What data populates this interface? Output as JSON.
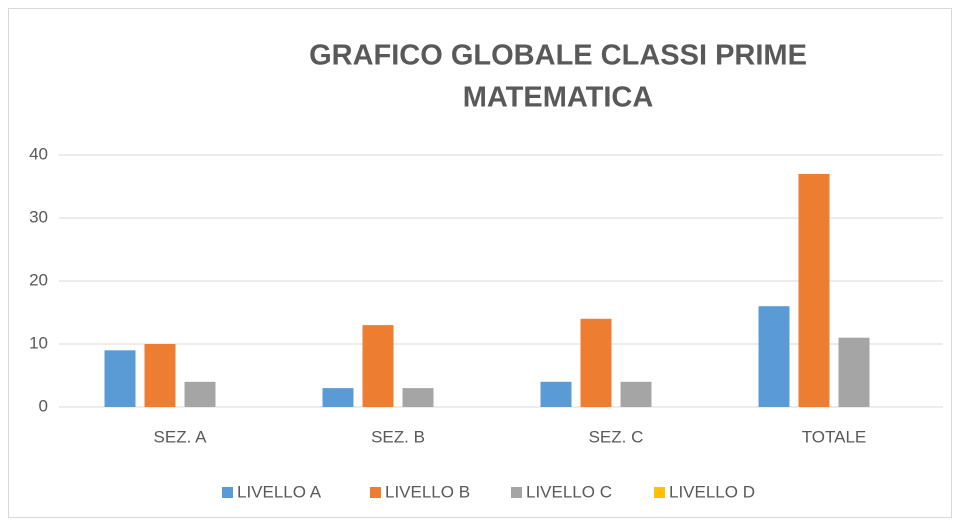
{
  "chart_data": {
    "type": "bar",
    "title": [
      "GRAFICO GLOBALE CLASSI PRIME",
      "MATEMATICA"
    ],
    "categories": [
      "SEZ. A",
      "SEZ. B",
      "SEZ. C",
      "TOTALE"
    ],
    "series": [
      {
        "name": "LIVELLO A",
        "color": "#5b9bd5",
        "values": [
          9,
          3,
          4,
          16
        ]
      },
      {
        "name": "LIVELLO B",
        "color": "#ed7d31",
        "values": [
          10,
          13,
          14,
          37
        ]
      },
      {
        "name": "LIVELLO C",
        "color": "#a5a5a5",
        "values": [
          4,
          3,
          4,
          11
        ]
      },
      {
        "name": "LIVELLO D",
        "color": "#ffc000",
        "values": [
          0,
          0,
          0,
          0
        ]
      }
    ],
    "ylim": [
      0,
      40
    ],
    "yticks": [
      0,
      10,
      20,
      30,
      40
    ],
    "grid": true,
    "legend": "bottom"
  }
}
